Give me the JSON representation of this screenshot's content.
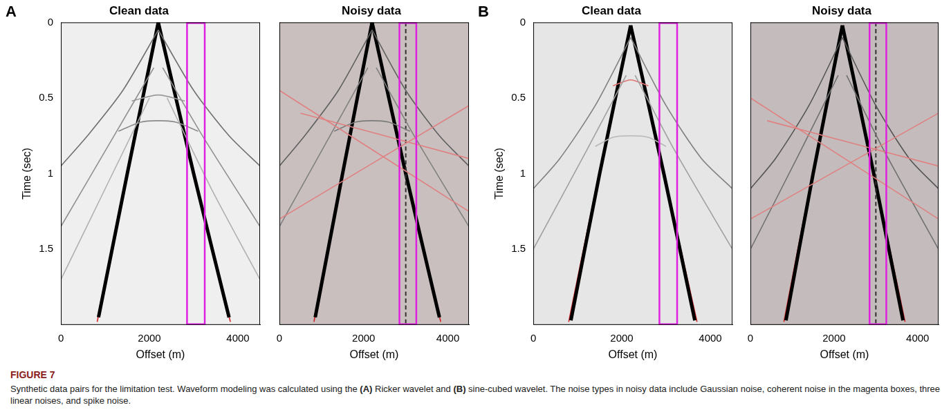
{
  "chart_data": [
    {
      "type": "line",
      "panel": "A",
      "title": "Clean data",
      "x_label": "Offset (m)",
      "y_label": "Time (sec)",
      "xlim": [
        0,
        4500
      ],
      "ylim": [
        0,
        2
      ],
      "xticks": [
        0,
        2000,
        4000
      ],
      "yticks": [
        0,
        0.5,
        1,
        1.5
      ],
      "grid": false,
      "highlight": {
        "x": [
          2850,
          3250
        ],
        "color": "#e020e0"
      },
      "series": [
        {
          "color": "#707070",
          "line_style": "solid",
          "x": [
            2200,
            1400,
            600,
            0
          ],
          "values": [
            0.05,
            0.45,
            0.75,
            0.95
          ]
        },
        {
          "color": "#707070",
          "line_style": "solid",
          "x": [
            2200,
            3000,
            3800,
            4500
          ],
          "values": [
            0.05,
            0.45,
            0.75,
            0.95
          ]
        },
        {
          "color": "#909090",
          "line_style": "solid",
          "x": [
            2100,
            1200,
            0
          ],
          "values": [
            0.3,
            0.75,
            1.35
          ]
        },
        {
          "color": "#909090",
          "line_style": "solid",
          "x": [
            2300,
            3200,
            4500
          ],
          "values": [
            0.3,
            0.75,
            1.35
          ]
        },
        {
          "color": "#b0b0b0",
          "line_style": "solid",
          "x": [
            2000,
            1000,
            0
          ],
          "values": [
            0.5,
            1.1,
            1.7
          ]
        },
        {
          "color": "#b0b0b0",
          "line_style": "solid",
          "x": [
            2400,
            3400,
            4500
          ],
          "values": [
            0.5,
            1.1,
            1.7
          ]
        },
        {
          "color": "#8a8a8a",
          "line_style": "solid",
          "x": [
            1300,
            1800,
            2200,
            2600,
            3100
          ],
          "values": [
            0.72,
            0.66,
            0.65,
            0.66,
            0.72
          ]
        },
        {
          "color": "#9a9a9a",
          "line_style": "solid",
          "x": [
            1600,
            2200,
            2800
          ],
          "values": [
            0.52,
            0.48,
            0.52
          ]
        },
        {
          "color": "#000000",
          "line_style": "solid",
          "x": [
            2200,
            1500,
            850
          ],
          "values": [
            0,
            1,
            1.95
          ]
        },
        {
          "color": "#000000",
          "line_style": "solid",
          "x": [
            2200,
            3000,
            3800
          ],
          "values": [
            0,
            1,
            1.95
          ]
        },
        {
          "color": "#d02020",
          "line_style": "solid",
          "x": [
            2180,
            1480,
            820
          ],
          "values": [
            0.03,
            1.03,
            1.98
          ]
        },
        {
          "color": "#d02020",
          "line_style": "solid",
          "x": [
            2220,
            3020,
            3830
          ],
          "values": [
            0.03,
            1.03,
            1.98
          ]
        }
      ]
    },
    {
      "type": "line",
      "panel": "A",
      "title": "Noisy data",
      "x_label": "Offset (m)",
      "tick_labels": "x",
      "xlim": [
        0,
        4500
      ],
      "ylim": [
        0,
        2
      ],
      "xticks": [
        0,
        2000,
        4000
      ],
      "yticks": [
        0,
        0.5,
        1,
        1.5
      ],
      "grid": false,
      "highlight": {
        "x": [
          2850,
          3250
        ],
        "color": "#e020e0"
      },
      "series": [
        {
          "color": "#e08080",
          "line_style": "solid",
          "x": [
            0,
            4500
          ],
          "values": [
            0.45,
            1.25
          ]
        },
        {
          "color": "#e08080",
          "line_style": "solid",
          "x": [
            0,
            4500
          ],
          "values": [
            1.3,
            0.55
          ]
        },
        {
          "color": "#e08080",
          "line_style": "solid",
          "x": [
            500,
            4500
          ],
          "values": [
            0.6,
            0.9
          ]
        },
        {
          "color": "#606060",
          "line_style": "solid",
          "x": [
            2200,
            1400,
            600,
            0
          ],
          "values": [
            0.05,
            0.45,
            0.75,
            0.95
          ]
        },
        {
          "color": "#606060",
          "line_style": "solid",
          "x": [
            2200,
            3000,
            3800,
            4500
          ],
          "values": [
            0.05,
            0.45,
            0.75,
            0.95
          ]
        },
        {
          "color": "#808080",
          "line_style": "solid",
          "x": [
            2100,
            1200,
            0
          ],
          "values": [
            0.3,
            0.75,
            1.35
          ]
        },
        {
          "color": "#808080",
          "line_style": "solid",
          "x": [
            2300,
            3200,
            4500
          ],
          "values": [
            0.3,
            0.75,
            1.35
          ]
        },
        {
          "color": "#7a7a7a",
          "line_style": "solid",
          "x": [
            1300,
            1800,
            2200,
            2600,
            3100
          ],
          "values": [
            0.72,
            0.66,
            0.65,
            0.66,
            0.72
          ]
        },
        {
          "color": "#303030",
          "line_style": "dashed",
          "x": [
            3000,
            3000
          ],
          "values": [
            0,
            2
          ]
        },
        {
          "color": "#000000",
          "line_style": "solid",
          "x": [
            2200,
            1500,
            850
          ],
          "values": [
            0,
            1,
            1.95
          ]
        },
        {
          "color": "#000000",
          "line_style": "solid",
          "x": [
            2200,
            3000,
            3800
          ],
          "values": [
            0,
            1,
            1.95
          ]
        },
        {
          "color": "#d02020",
          "line_style": "solid",
          "x": [
            2180,
            1480,
            820
          ],
          "values": [
            0.03,
            1.03,
            1.98
          ]
        },
        {
          "color": "#d02020",
          "line_style": "solid",
          "x": [
            2220,
            3020,
            3830
          ],
          "values": [
            0.03,
            1.03,
            1.98
          ]
        }
      ]
    },
    {
      "type": "line",
      "panel": "B",
      "title": "Clean data",
      "x_label": "Offset (m)",
      "y_label": "Time (sec)",
      "xlim": [
        0,
        4500
      ],
      "ylim": [
        0,
        2
      ],
      "xticks": [
        0,
        2000,
        4000
      ],
      "yticks": [
        0,
        0.5,
        1,
        1.5
      ],
      "grid": false,
      "highlight": {
        "x": [
          2850,
          3250
        ],
        "color": "#e020e0"
      },
      "series": [
        {
          "color": "#808080",
          "line_style": "solid",
          "x": [
            2200,
            1400,
            600,
            0
          ],
          "values": [
            0.1,
            0.55,
            0.9,
            1.1
          ]
        },
        {
          "color": "#808080",
          "line_style": "solid",
          "x": [
            2200,
            3000,
            3800,
            4500
          ],
          "values": [
            0.1,
            0.55,
            0.9,
            1.1
          ]
        },
        {
          "color": "#a0a0a0",
          "line_style": "solid",
          "x": [
            2100,
            1200,
            0
          ],
          "values": [
            0.35,
            0.85,
            1.5
          ]
        },
        {
          "color": "#a0a0a0",
          "line_style": "solid",
          "x": [
            2300,
            3200,
            4500
          ],
          "values": [
            0.35,
            0.85,
            1.5
          ]
        },
        {
          "color": "#b8b8b8",
          "line_style": "solid",
          "x": [
            1400,
            1800,
            2200,
            2600,
            3000
          ],
          "values": [
            0.82,
            0.76,
            0.75,
            0.76,
            0.82
          ]
        },
        {
          "color": "#e07070",
          "line_style": "solid",
          "x": [
            1800,
            2200,
            2600
          ],
          "values": [
            0.42,
            0.38,
            0.42
          ]
        },
        {
          "color": "#000000",
          "line_style": "solid",
          "x": [
            2200,
            1500,
            850
          ],
          "values": [
            0.02,
            1,
            1.97
          ]
        },
        {
          "color": "#000000",
          "line_style": "solid",
          "x": [
            2200,
            2950,
            3650
          ],
          "values": [
            0.02,
            1,
            1.97
          ]
        },
        {
          "color": "#d02020",
          "line_style": "solid",
          "x": [
            2160,
            1450,
            800
          ],
          "values": [
            0.08,
            1.05,
            1.98
          ]
        },
        {
          "color": "#d02020",
          "line_style": "solid",
          "x": [
            2240,
            2990,
            3700
          ],
          "values": [
            0.08,
            1.05,
            1.98
          ]
        }
      ]
    },
    {
      "type": "line",
      "panel": "B",
      "title": "Noisy data",
      "x_label": "Offset (m)",
      "tick_labels": "x",
      "xlim": [
        0,
        4500
      ],
      "ylim": [
        0,
        2
      ],
      "xticks": [
        0,
        2000,
        4000
      ],
      "yticks": [
        0,
        0.5,
        1,
        1.5
      ],
      "grid": false,
      "highlight": {
        "x": [
          2850,
          3250
        ],
        "color": "#e020e0"
      },
      "series": [
        {
          "color": "#e08080",
          "line_style": "solid",
          "x": [
            0,
            4500
          ],
          "values": [
            0.5,
            1.3
          ]
        },
        {
          "color": "#e08080",
          "line_style": "solid",
          "x": [
            0,
            4500
          ],
          "values": [
            1.3,
            0.6
          ]
        },
        {
          "color": "#e08080",
          "line_style": "solid",
          "x": [
            400,
            4500
          ],
          "values": [
            0.65,
            0.95
          ]
        },
        {
          "color": "#555555",
          "line_style": "solid",
          "x": [
            2200,
            1400,
            600,
            0
          ],
          "values": [
            0.1,
            0.55,
            0.9,
            1.1
          ]
        },
        {
          "color": "#555555",
          "line_style": "solid",
          "x": [
            2200,
            3000,
            3800,
            4500
          ],
          "values": [
            0.1,
            0.55,
            0.9,
            1.1
          ]
        },
        {
          "color": "#707070",
          "line_style": "solid",
          "x": [
            2100,
            1200,
            0
          ],
          "values": [
            0.35,
            0.85,
            1.5
          ]
        },
        {
          "color": "#707070",
          "line_style": "solid",
          "x": [
            2300,
            3200,
            4500
          ],
          "values": [
            0.35,
            0.85,
            1.5
          ]
        },
        {
          "color": "#303030",
          "line_style": "dashed",
          "x": [
            3000,
            3000
          ],
          "values": [
            0,
            2
          ]
        },
        {
          "color": "#000000",
          "line_style": "solid",
          "x": [
            2200,
            1500,
            850
          ],
          "values": [
            0.02,
            1,
            1.97
          ]
        },
        {
          "color": "#000000",
          "line_style": "solid",
          "x": [
            2200,
            2950,
            3650
          ],
          "values": [
            0.02,
            1,
            1.97
          ]
        },
        {
          "color": "#d02020",
          "line_style": "solid",
          "x": [
            2160,
            1450,
            800
          ],
          "values": [
            0.08,
            1.05,
            1.98
          ]
        },
        {
          "color": "#d02020",
          "line_style": "solid",
          "x": [
            2240,
            2990,
            3700
          ],
          "values": [
            0.08,
            1.05,
            1.98
          ]
        }
      ]
    }
  ],
  "figure": {
    "label": "FIGURE 7",
    "caption": [
      {
        "text": "Synthetic data pairs for the limitation test. Waveform modeling was calculated using the ",
        "bold": false
      },
      {
        "text": "(A)",
        "bold": true
      },
      {
        "text": " Ricker wavelet and ",
        "bold": false
      },
      {
        "text": "(B)",
        "bold": true
      },
      {
        "text": " sine-cubed wavelet. The noise types in noisy data include Gaussian noise, coherent noise in the magenta boxes, three linear noises, and spike noise.",
        "bold": false
      }
    ]
  }
}
